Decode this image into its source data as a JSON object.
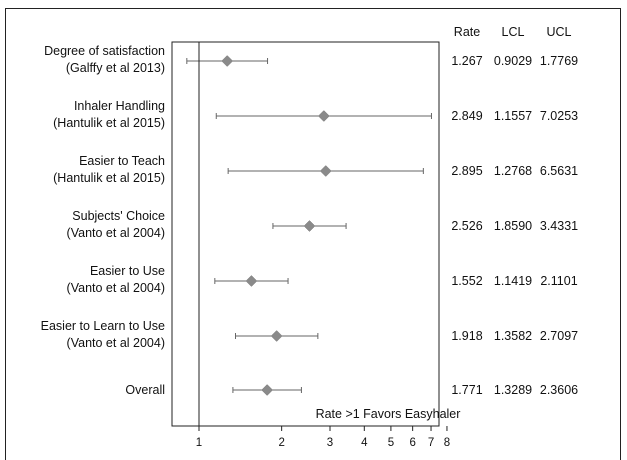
{
  "chart_data": {
    "type": "forest",
    "x_scale": "log",
    "xlim": [
      0.85,
      8.5
    ],
    "reference_line": 1,
    "x_ticks": [
      {
        "value": 1,
        "label": "1"
      },
      {
        "value": 2,
        "label": "2"
      },
      {
        "value": 3,
        "label": "3"
      },
      {
        "value": 4,
        "label": "4"
      },
      {
        "value": 5,
        "label": "5"
      },
      {
        "value": 6,
        "label": "6"
      },
      {
        "value": 7,
        "label": "7"
      },
      {
        "value": 8,
        "label": "8"
      }
    ],
    "annotation": "Rate >1 Favors Easyhaler",
    "columns": [
      "Rate",
      "LCL",
      "UCL"
    ],
    "rows": [
      {
        "label1": "Degree of satisfaction",
        "label2": "(Galffy et al 2013)",
        "rate": 1.267,
        "lcl": 0.9029,
        "ucl": 1.7769,
        "rate_text": "1.267",
        "lcl_text": "0.9029",
        "ucl_text": "1.7769"
      },
      {
        "label1": "Inhaler Handling",
        "label2": "(Hantulik et al 2015)",
        "rate": 2.849,
        "lcl": 1.1557,
        "ucl": 7.0253,
        "rate_text": "2.849",
        "lcl_text": "1.1557",
        "ucl_text": "7.0253"
      },
      {
        "label1": "Easier to Teach",
        "label2": "(Hantulik et al 2015)",
        "rate": 2.895,
        "lcl": 1.2768,
        "ucl": 6.5631,
        "rate_text": "2.895",
        "lcl_text": "1.2768",
        "ucl_text": "6.5631"
      },
      {
        "label1": "Subjects' Choice",
        "label2": "(Vanto et al 2004)",
        "rate": 2.526,
        "lcl": 1.859,
        "ucl": 3.4331,
        "rate_text": "2.526",
        "lcl_text": "1.8590",
        "ucl_text": "3.4331"
      },
      {
        "label1": "Easier to Use",
        "label2": "(Vanto et al 2004)",
        "rate": 1.552,
        "lcl": 1.1419,
        "ucl": 2.1101,
        "rate_text": "1.552",
        "lcl_text": "1.1419",
        "ucl_text": "2.1101"
      },
      {
        "label1": "Easier to Learn to Use",
        "label2": "(Vanto et al 2004)",
        "rate": 1.918,
        "lcl": 1.3582,
        "ucl": 2.7097,
        "rate_text": "1.918",
        "lcl_text": "1.3582",
        "ucl_text": "2.7097"
      },
      {
        "label1": "Overall",
        "label2": "",
        "rate": 1.771,
        "lcl": 1.3289,
        "ucl": 2.3606,
        "rate_text": "1.771",
        "lcl_text": "1.3289",
        "ucl_text": "2.3606"
      }
    ],
    "colors": {
      "marker": "#8a8a8a",
      "whisker": "#666666",
      "axis": "#222222"
    }
  }
}
